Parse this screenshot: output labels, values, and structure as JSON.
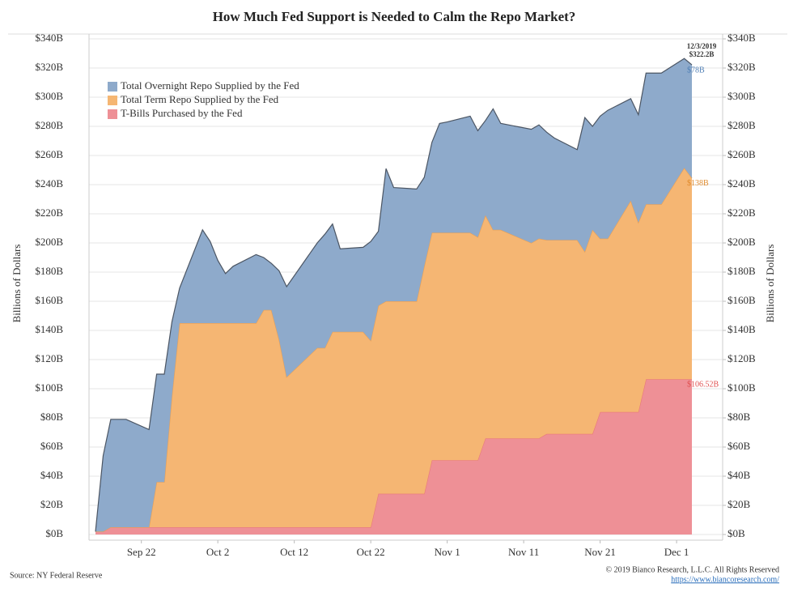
{
  "chart_data": {
    "type": "stacked_area",
    "title": "How Much Fed Support is Needed to Calm the Repo Market?",
    "y_label": "Billions of Dollars",
    "y2_label": "Billions of Dollars",
    "x": [
      "Sep 16",
      "Sep 17",
      "Sep 18",
      "Sep 19",
      "Sep 20",
      "Sep 23",
      "Sep 24",
      "Sep 25",
      "Sep 26",
      "Sep 27",
      "Sep 30",
      "Oct 1",
      "Oct 2",
      "Oct 3",
      "Oct 4",
      "Oct 7",
      "Oct 8",
      "Oct 9",
      "Oct 10",
      "Oct 11",
      "Oct 15",
      "Oct 16",
      "Oct 17",
      "Oct 18",
      "Oct 21",
      "Oct 22",
      "Oct 23",
      "Oct 24",
      "Oct 25",
      "Oct 28",
      "Oct 29",
      "Oct 30",
      "Oct 31",
      "Nov 1",
      "Nov 4",
      "Nov 5",
      "Nov 6",
      "Nov 7",
      "Nov 8",
      "Nov 12",
      "Nov 13",
      "Nov 14",
      "Nov 15",
      "Nov 18",
      "Nov 19",
      "Nov 20",
      "Nov 21",
      "Nov 22",
      "Nov 25",
      "Nov 26",
      "Nov 27",
      "Nov 29",
      "Dec 2",
      "Dec 3"
    ],
    "xticks": [
      "Sep 22",
      "Oct 2",
      "Oct 12",
      "Oct 22",
      "Nov 1",
      "Nov 11",
      "Nov 21",
      "Dec 1"
    ],
    "series": [
      {
        "name": "Total Overnight Repo Supplied by the Fed",
        "color": "#8eaacb",
        "line_color": "#4b5563",
        "label_color": "#4f7fb5",
        "values": [
          0,
          52,
          74,
          74,
          74,
          67,
          74,
          74,
          51,
          24,
          64,
          56,
          43,
          34,
          39,
          47,
          36,
          32,
          47,
          62,
          72,
          78,
          74,
          57,
          58,
          68,
          51,
          91,
          78,
          77,
          61,
          62,
          75,
          76,
          80,
          73,
          65,
          83,
          73,
          78,
          78,
          74,
          70,
          62,
          92,
          71,
          84,
          88,
          70,
          74,
          90,
          90,
          75,
          77.68
        ],
        "value_labels": [
          null,
          null,
          null,
          null,
          null,
          null,
          null,
          null,
          null,
          null,
          null,
          null,
          null,
          null,
          null,
          null,
          null,
          null,
          null,
          null,
          null,
          null,
          null,
          null,
          null,
          null,
          null,
          null,
          null,
          null,
          null,
          null,
          null,
          null,
          null,
          null,
          null,
          null,
          null,
          null,
          null,
          null,
          null,
          null,
          null,
          null,
          null,
          null,
          null,
          null,
          null,
          null,
          null,
          "$78B"
        ]
      },
      {
        "name": "Total Term Repo Supplied by the Fed",
        "color": "#f5b673",
        "line_color": "#e9a055",
        "label_color": "#e08b2e",
        "values": [
          0,
          0,
          0,
          0,
          0,
          0,
          31,
          31,
          90,
          140,
          140,
          140,
          140,
          140,
          140,
          140,
          149,
          149,
          129,
          103,
          123,
          123,
          134,
          134,
          134,
          128,
          129,
          132,
          132,
          132,
          156,
          156,
          156,
          156,
          156,
          153,
          153,
          143,
          143,
          134,
          137,
          133,
          133,
          133,
          125,
          140,
          119,
          119,
          145,
          130,
          120,
          120,
          145,
          138
        ],
        "value_labels": [
          null,
          null,
          null,
          null,
          null,
          null,
          null,
          null,
          null,
          null,
          null,
          null,
          null,
          null,
          null,
          null,
          null,
          null,
          null,
          null,
          null,
          null,
          null,
          null,
          null,
          null,
          null,
          null,
          null,
          null,
          null,
          null,
          null,
          null,
          null,
          null,
          null,
          null,
          null,
          null,
          null,
          null,
          null,
          null,
          null,
          null,
          null,
          null,
          null,
          null,
          null,
          null,
          null,
          "$138B"
        ]
      },
      {
        "name": "T-Bills Purchased by the Fed",
        "color": "#ee9096",
        "line_color": "#e87a7a",
        "label_color": "#e05050",
        "values": [
          2,
          2,
          5,
          5,
          5,
          5,
          5,
          5,
          5,
          5,
          5,
          5,
          5,
          5,
          5,
          5,
          5,
          5,
          5,
          5,
          5,
          5,
          5,
          5,
          5,
          5,
          28,
          28,
          28,
          28,
          28,
          51,
          51,
          51,
          51,
          51,
          66,
          66,
          66,
          66,
          66,
          69,
          69,
          69,
          69,
          69,
          84,
          84,
          84,
          84,
          106.52,
          106.52,
          106.52,
          106.52
        ],
        "value_labels": [
          null,
          null,
          null,
          null,
          null,
          null,
          null,
          null,
          null,
          null,
          null,
          null,
          null,
          null,
          null,
          null,
          null,
          null,
          null,
          null,
          null,
          null,
          null,
          null,
          null,
          null,
          null,
          null,
          null,
          null,
          null,
          null,
          null,
          null,
          null,
          null,
          null,
          null,
          null,
          null,
          null,
          null,
          null,
          null,
          null,
          null,
          null,
          null,
          null,
          null,
          null,
          null,
          null,
          "$106.52B"
        ]
      }
    ],
    "annotation": {
      "date": "12/3/2019",
      "label": "$322.2B",
      "value": 322.2
    },
    "ylim": [
      0,
      340
    ],
    "yticks": [
      {
        "value": 0,
        "label": "$0B"
      },
      {
        "value": 20,
        "label": "$20B"
      },
      {
        "value": 40,
        "label": "$40B"
      },
      {
        "value": 60,
        "label": "$60B"
      },
      {
        "value": 80,
        "label": "$80B"
      },
      {
        "value": 100,
        "label": "$100B"
      },
      {
        "value": 120,
        "label": "$120B"
      },
      {
        "value": 140,
        "label": "$140B"
      },
      {
        "value": 160,
        "label": "$160B"
      },
      {
        "value": 180,
        "label": "$180B"
      },
      {
        "value": 200,
        "label": "$200B"
      },
      {
        "value": 220,
        "label": "$220B"
      },
      {
        "value": 240,
        "label": "$240B"
      },
      {
        "value": 260,
        "label": "$260B"
      },
      {
        "value": 280,
        "label": "$280B"
      },
      {
        "value": 300,
        "label": "$300B"
      },
      {
        "value": 320,
        "label": "$320B"
      },
      {
        "value": 340,
        "label": "$340B"
      }
    ],
    "y2lim": [
      0,
      340
    ],
    "y2ticks": [
      {
        "value": 0,
        "label": "$0B"
      },
      {
        "value": 20,
        "label": "$20B"
      },
      {
        "value": 40,
        "label": "$40B"
      },
      {
        "value": 60,
        "label": "$60B"
      },
      {
        "value": 80,
        "label": "$80B"
      },
      {
        "value": 100,
        "label": "$100B"
      },
      {
        "value": 120,
        "label": "$120B"
      },
      {
        "value": 140,
        "label": "$140B"
      },
      {
        "value": 160,
        "label": "$160B"
      },
      {
        "value": 180,
        "label": "$180B"
      },
      {
        "value": 200,
        "label": "$200B"
      },
      {
        "value": 220,
        "label": "$220B"
      },
      {
        "value": 240,
        "label": "$240B"
      },
      {
        "value": 260,
        "label": "$260B"
      },
      {
        "value": 280,
        "label": "$280B"
      },
      {
        "value": 300,
        "label": "$300B"
      },
      {
        "value": 320,
        "label": "$320B"
      },
      {
        "value": 340,
        "label": "$340B"
      }
    ],
    "grid": true,
    "legend": "upper left",
    "source": "Source: NY Federal Reserve",
    "copyright": "© 2019 Bianco Research, L.L.C. All Rights Reserved",
    "link": "https://www.biancoresearch.com/"
  }
}
